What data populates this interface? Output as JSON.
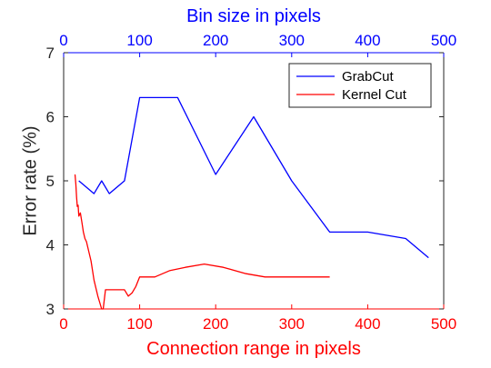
{
  "chart_data": {
    "type": "line",
    "xlabel_bottom": "Connection range in pixels",
    "xlabel_top": "Bin size in pixels",
    "ylabel": "Error rate (%)",
    "xlim_bottom": [
      0,
      500
    ],
    "xlim_top": [
      0,
      500
    ],
    "ylim": [
      3,
      7
    ],
    "x_ticks": [
      0,
      100,
      200,
      300,
      400,
      500
    ],
    "x_top_ticks": [
      0,
      100,
      200,
      300,
      400,
      500
    ],
    "y_ticks": [
      3,
      4,
      5,
      6,
      7
    ],
    "grid": false,
    "legend_position": "top-right",
    "series": [
      {
        "name": "GrabCut",
        "axis": "top",
        "color": "#0000ff",
        "x": [
          20,
          40,
          50,
          60,
          80,
          100,
          150,
          200,
          250,
          300,
          350,
          400,
          450,
          480
        ],
        "y": [
          5.0,
          4.8,
          5.0,
          4.8,
          5.0,
          6.3,
          6.3,
          5.1,
          6.0,
          5.0,
          4.2,
          4.2,
          4.1,
          3.8
        ]
      },
      {
        "name": "Kernel Cut",
        "axis": "bottom",
        "color": "#ff0000",
        "x": [
          15,
          16,
          17,
          18,
          19,
          20,
          22,
          24,
          26,
          28,
          30,
          33,
          36,
          40,
          45,
          50,
          52,
          55,
          60,
          70,
          80,
          85,
          90,
          95,
          100,
          110,
          120,
          140,
          160,
          185,
          210,
          240,
          265,
          300,
          350
        ],
        "y": [
          5.1,
          4.95,
          4.75,
          4.6,
          4.62,
          4.45,
          4.5,
          4.35,
          4.2,
          4.1,
          4.05,
          3.9,
          3.75,
          3.45,
          3.2,
          3.0,
          3.0,
          3.3,
          3.3,
          3.3,
          3.3,
          3.2,
          3.25,
          3.35,
          3.5,
          3.5,
          3.5,
          3.6,
          3.65,
          3.7,
          3.65,
          3.55,
          3.5,
          3.5,
          3.5
        ]
      }
    ]
  },
  "colors": {
    "top_axis": "#0000ff",
    "bottom_axis": "#ff0000",
    "left_axis": "#262626"
  }
}
